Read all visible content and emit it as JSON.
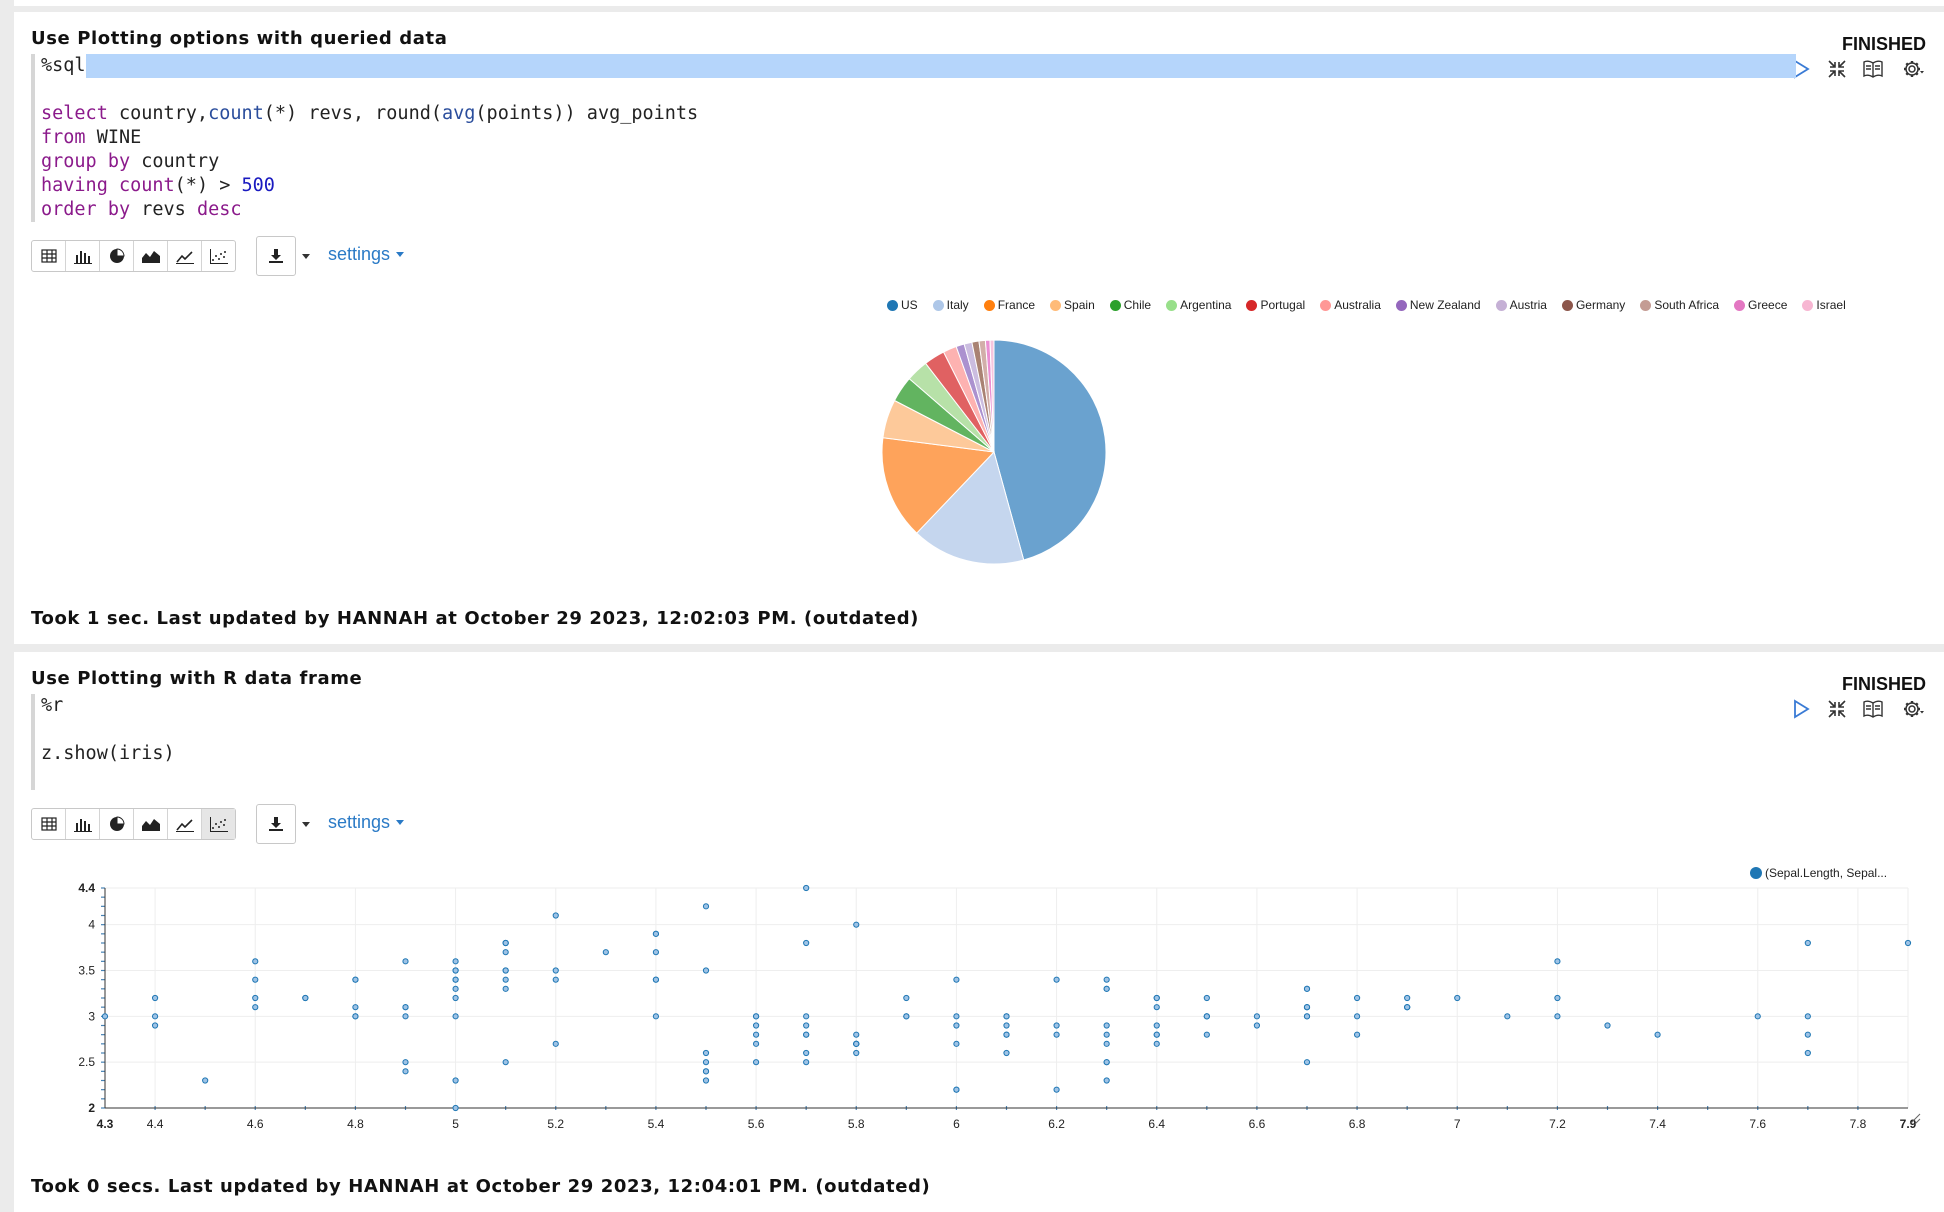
{
  "paragraphs": [
    {
      "title": "Use Plotting options with queried data",
      "status": "FINISHED",
      "code": {
        "magic": "%sql",
        "lines": [
          [
            {
              "t": "select",
              "c": "kw"
            },
            {
              "t": " country,"
            },
            {
              "t": "count",
              "c": "fn2"
            },
            {
              "t": "(*) revs, round("
            },
            {
              "t": "avg",
              "c": "fn2"
            },
            {
              "t": "(points)) avg_points"
            }
          ],
          [
            {
              "t": "from",
              "c": "kw"
            },
            {
              "t": " WINE"
            }
          ],
          [
            {
              "t": "group by",
              "c": "kw"
            },
            {
              "t": " country"
            }
          ],
          [
            {
              "t": "having",
              "c": "kw"
            },
            {
              "t": " "
            },
            {
              "t": "count",
              "c": "fn"
            },
            {
              "t": "(*) > "
            },
            {
              "t": "500",
              "c": "num"
            }
          ],
          [
            {
              "t": "order by",
              "c": "kw"
            },
            {
              "t": " revs "
            },
            {
              "t": "desc",
              "c": "kw"
            }
          ]
        ]
      },
      "settings_label": "settings",
      "footer": "Took 1 sec. Last updated by HANNAH at October 29 2023, 12:02:03 PM. (outdated)"
    },
    {
      "title": "Use Plotting with R data frame",
      "status": "FINISHED",
      "code": {
        "magic": "%r",
        "lines": [
          [
            {
              "t": "z.show(iris)"
            }
          ]
        ]
      },
      "settings_label": "settings",
      "footer": "Took 0 secs. Last updated by HANNAH at October 29 2023, 12:04:01 PM. (outdated)"
    }
  ],
  "chart_data": [
    {
      "type": "pie",
      "legend_position": "top-right",
      "slices": [
        {
          "label": "US",
          "value": 54504,
          "color": "#6aa2cf"
        },
        {
          "label": "Italy",
          "value": 19540,
          "color": "#c5d6ee"
        },
        {
          "label": "France",
          "value": 17776,
          "color": "#fea35b"
        },
        {
          "label": "Spain",
          "value": 6645,
          "color": "#fdc99a"
        },
        {
          "label": "Chile",
          "value": 4472,
          "color": "#62b460"
        },
        {
          "label": "Argentina",
          "value": 3800,
          "color": "#b7e1a8"
        },
        {
          "label": "Portugal",
          "value": 3600,
          "color": "#e06162"
        },
        {
          "label": "Australia",
          "value": 2329,
          "color": "#fdb2b1"
        },
        {
          "label": "New Zealand",
          "value": 1419,
          "color": "#ab91cf"
        },
        {
          "label": "Austria",
          "value": 1345,
          "color": "#cbbde0"
        },
        {
          "label": "Germany",
          "value": 1210,
          "color": "#a98273"
        },
        {
          "label": "South Africa",
          "value": 1100,
          "color": "#d2aea9"
        },
        {
          "label": "Greece",
          "value": 780,
          "color": "#ea8ed2"
        },
        {
          "label": "Israel",
          "value": 680,
          "color": "#f6c5de"
        }
      ],
      "legend_colors": [
        "#1f77b4",
        "#aec7e8",
        "#ff7f0e",
        "#ffbb78",
        "#2ca02c",
        "#98df8a",
        "#d62728",
        "#ff9896",
        "#9467bd",
        "#c5b0d5",
        "#8c564b",
        "#c49c94",
        "#e377c2",
        "#f7b6d2"
      ]
    },
    {
      "type": "scatter",
      "series": [
        {
          "name": "(Sepal.Length, Sepal...",
          "color": "#1f77b4"
        }
      ],
      "xlim": [
        4.3,
        7.9
      ],
      "ylim": [
        2,
        4.4
      ],
      "x_ticks": [
        "4.3",
        "4.4",
        "4.6",
        "4.8",
        "5",
        "5.2",
        "5.4",
        "5.6",
        "5.8",
        "6",
        "6.2",
        "6.4",
        "6.6",
        "6.8",
        "7",
        "7.2",
        "7.4",
        "7.6",
        "7.8",
        "7.9"
      ],
      "y_ticks": [
        "2",
        "2.5",
        "3",
        "3.5",
        "4",
        "4.4"
      ],
      "grid": true,
      "points": [
        [
          5.1,
          3.5
        ],
        [
          4.9,
          3.0
        ],
        [
          4.7,
          3.2
        ],
        [
          4.6,
          3.1
        ],
        [
          5.0,
          3.6
        ],
        [
          5.4,
          3.9
        ],
        [
          4.6,
          3.4
        ],
        [
          5.0,
          3.4
        ],
        [
          4.4,
          2.9
        ],
        [
          4.9,
          3.1
        ],
        [
          5.4,
          3.7
        ],
        [
          4.8,
          3.4
        ],
        [
          4.8,
          3.0
        ],
        [
          4.3,
          3.0
        ],
        [
          5.8,
          4.0
        ],
        [
          5.7,
          4.4
        ],
        [
          5.4,
          3.9
        ],
        [
          5.1,
          3.5
        ],
        [
          5.7,
          3.8
        ],
        [
          5.1,
          3.8
        ],
        [
          5.4,
          3.4
        ],
        [
          5.1,
          3.7
        ],
        [
          4.6,
          3.6
        ],
        [
          5.1,
          3.3
        ],
        [
          4.8,
          3.4
        ],
        [
          5.0,
          3.0
        ],
        [
          5.0,
          3.4
        ],
        [
          5.2,
          3.5
        ],
        [
          5.2,
          3.4
        ],
        [
          4.7,
          3.2
        ],
        [
          4.8,
          3.1
        ],
        [
          5.4,
          3.4
        ],
        [
          5.2,
          4.1
        ],
        [
          5.5,
          4.2
        ],
        [
          4.9,
          3.1
        ],
        [
          5.0,
          3.2
        ],
        [
          5.5,
          3.5
        ],
        [
          4.9,
          3.6
        ],
        [
          4.4,
          3.0
        ],
        [
          5.1,
          3.4
        ],
        [
          5.0,
          3.5
        ],
        [
          4.5,
          2.3
        ],
        [
          4.4,
          3.2
        ],
        [
          5.0,
          3.5
        ],
        [
          5.1,
          3.8
        ],
        [
          4.8,
          3.0
        ],
        [
          5.1,
          3.8
        ],
        [
          4.6,
          3.2
        ],
        [
          5.3,
          3.7
        ],
        [
          5.0,
          3.3
        ],
        [
          7.0,
          3.2
        ],
        [
          6.4,
          3.2
        ],
        [
          6.9,
          3.1
        ],
        [
          5.5,
          2.3
        ],
        [
          6.5,
          2.8
        ],
        [
          5.7,
          2.8
        ],
        [
          6.3,
          3.3
        ],
        [
          4.9,
          2.4
        ],
        [
          6.6,
          2.9
        ],
        [
          5.2,
          2.7
        ],
        [
          5.0,
          2.0
        ],
        [
          5.9,
          3.0
        ],
        [
          6.0,
          2.2
        ],
        [
          6.1,
          2.9
        ],
        [
          5.6,
          2.9
        ],
        [
          6.7,
          3.1
        ],
        [
          5.6,
          3.0
        ],
        [
          5.8,
          2.7
        ],
        [
          6.2,
          2.2
        ],
        [
          5.6,
          2.5
        ],
        [
          5.9,
          3.2
        ],
        [
          6.1,
          2.8
        ],
        [
          6.3,
          2.5
        ],
        [
          6.1,
          2.8
        ],
        [
          6.4,
          2.9
        ],
        [
          6.6,
          3.0
        ],
        [
          6.8,
          2.8
        ],
        [
          6.7,
          3.0
        ],
        [
          6.0,
          2.9
        ],
        [
          5.7,
          2.6
        ],
        [
          5.5,
          2.4
        ],
        [
          5.5,
          2.4
        ],
        [
          5.8,
          2.7
        ],
        [
          6.0,
          2.7
        ],
        [
          5.4,
          3.0
        ],
        [
          6.0,
          3.4
        ],
        [
          6.7,
          3.1
        ],
        [
          6.3,
          2.3
        ],
        [
          5.6,
          3.0
        ],
        [
          5.5,
          2.5
        ],
        [
          5.5,
          2.6
        ],
        [
          6.1,
          3.0
        ],
        [
          5.8,
          2.6
        ],
        [
          5.0,
          2.3
        ],
        [
          5.6,
          2.7
        ],
        [
          5.7,
          3.0
        ],
        [
          5.7,
          2.9
        ],
        [
          6.2,
          2.9
        ],
        [
          5.1,
          2.5
        ],
        [
          5.7,
          2.8
        ],
        [
          6.3,
          3.3
        ],
        [
          5.8,
          2.7
        ],
        [
          7.1,
          3.0
        ],
        [
          6.3,
          2.9
        ],
        [
          6.5,
          3.0
        ],
        [
          7.6,
          3.0
        ],
        [
          4.9,
          2.5
        ],
        [
          7.3,
          2.9
        ],
        [
          6.7,
          2.5
        ],
        [
          7.2,
          3.6
        ],
        [
          6.5,
          3.2
        ],
        [
          6.4,
          2.7
        ],
        [
          6.8,
          3.0
        ],
        [
          5.7,
          2.5
        ],
        [
          5.8,
          2.8
        ],
        [
          6.4,
          3.2
        ],
        [
          6.5,
          3.0
        ],
        [
          7.7,
          3.8
        ],
        [
          7.7,
          2.6
        ],
        [
          6.0,
          2.2
        ],
        [
          6.9,
          3.2
        ],
        [
          5.6,
          2.8
        ],
        [
          7.7,
          2.8
        ],
        [
          6.3,
          2.7
        ],
        [
          6.7,
          3.3
        ],
        [
          7.2,
          3.2
        ],
        [
          6.2,
          2.8
        ],
        [
          6.1,
          3.0
        ],
        [
          6.4,
          2.8
        ],
        [
          7.2,
          3.0
        ],
        [
          7.4,
          2.8
        ],
        [
          7.9,
          3.8
        ],
        [
          6.4,
          2.8
        ],
        [
          6.3,
          2.8
        ],
        [
          6.1,
          2.6
        ],
        [
          7.7,
          3.0
        ],
        [
          6.3,
          3.4
        ],
        [
          6.4,
          3.1
        ],
        [
          6.0,
          3.0
        ],
        [
          6.9,
          3.1
        ],
        [
          6.7,
          3.1
        ],
        [
          6.9,
          3.1
        ],
        [
          5.8,
          2.7
        ],
        [
          6.8,
          3.2
        ],
        [
          6.7,
          3.3
        ],
        [
          6.7,
          3.0
        ],
        [
          6.3,
          2.5
        ],
        [
          6.5,
          3.0
        ],
        [
          6.2,
          3.4
        ],
        [
          5.9,
          3.0
        ]
      ]
    }
  ]
}
